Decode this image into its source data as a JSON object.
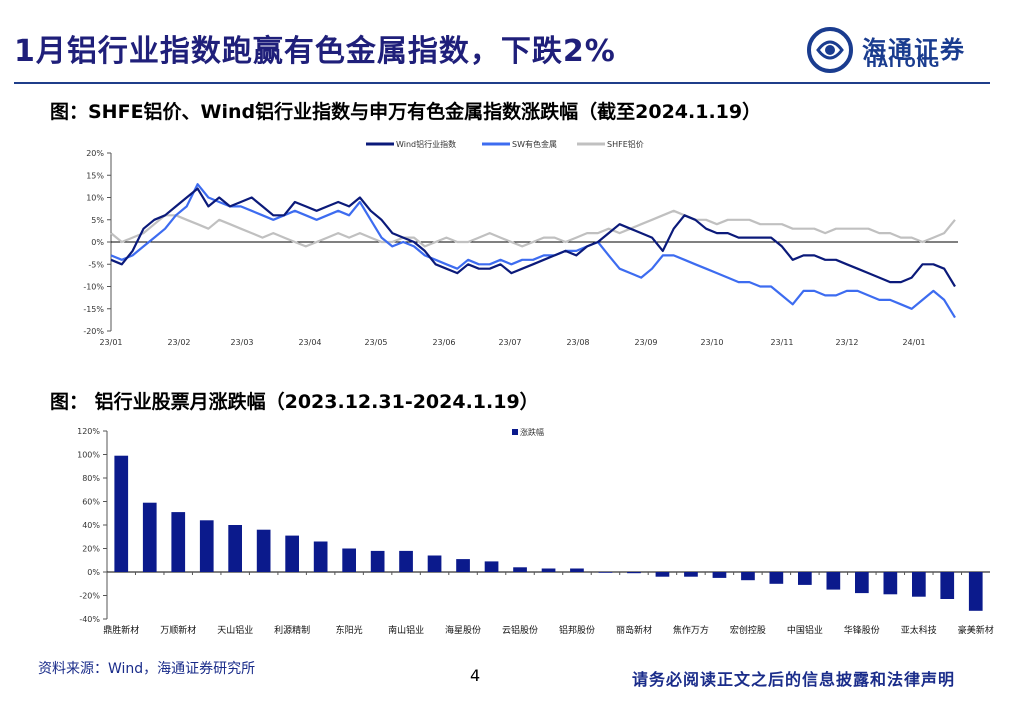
{
  "page": {
    "title": "1月铝行业指数跑赢有色金属指数，下跌2%",
    "subtitle1": "图：SHFE铝价、Wind铝行业指数与申万有色金属指数涨跌幅（截至2024.1.19）",
    "subtitle2": "图：  铝行业股票月涨跌幅（2023.12.31-2024.1.19）",
    "source": "资料来源：Wind，海通证券研究所",
    "page_number": "4",
    "disclaimer": "请务必阅读正文之后的信息披露和法律声明",
    "logo_cn": "海通证券",
    "logo_en": "HAITONG"
  },
  "colors": {
    "title": "#1f1f7a",
    "wind_series": "#0b1a7a",
    "sw_series": "#3d6cf0",
    "shfe_series": "#c0c0c0",
    "bar": "#0b1a8c",
    "brand": "#1a3c8f"
  },
  "chart_data": [
    {
      "type": "line",
      "x_ticks": [
        "23/01",
        "23/02",
        "23/03",
        "23/04",
        "23/05",
        "23/06",
        "23/07",
        "23/08",
        "23/09",
        "23/10",
        "23/11",
        "23/12",
        "24/01"
      ],
      "y_ticks": [
        "20%",
        "15%",
        "10%",
        "5%",
        "0%",
        "-5%",
        "-10%",
        "-15%",
        "-20%"
      ],
      "ylim": [
        -20,
        20
      ],
      "legend_position": "top",
      "series": [
        {
          "name": "Wind铝行业指数",
          "color": "#0b1a7a",
          "values": [
            -4,
            -5,
            -2,
            3,
            5,
            6,
            8,
            10,
            12,
            8,
            10,
            8,
            9,
            10,
            8,
            6,
            6,
            9,
            8,
            7,
            8,
            9,
            8,
            10,
            7,
            5,
            2,
            1,
            0,
            -2,
            -5,
            -6,
            -7,
            -5,
            -6,
            -6,
            -5,
            -7,
            -6,
            -5,
            -4,
            -3,
            -2,
            -3,
            -1,
            0,
            2,
            4,
            3,
            2,
            1,
            -2,
            3,
            6,
            5,
            3,
            2,
            2,
            1,
            1,
            1,
            1,
            -1,
            -4,
            -3,
            -3,
            -4,
            -4,
            -5,
            -6,
            -7,
            -8,
            -9,
            -9,
            -8,
            -5,
            -5,
            -6,
            -10
          ]
        },
        {
          "name": "SW有色金属",
          "color": "#3d6cf0",
          "values": [
            -3,
            -4,
            -3,
            -1,
            1,
            3,
            6,
            8,
            13,
            10,
            9,
            8,
            8,
            7,
            6,
            5,
            6,
            7,
            6,
            5,
            6,
            7,
            6,
            9,
            5,
            1,
            -1,
            0,
            -1,
            -3,
            -4,
            -5,
            -6,
            -4,
            -5,
            -5,
            -4,
            -5,
            -4,
            -4,
            -3,
            -3,
            -2,
            -2,
            -1,
            0,
            -3,
            -6,
            -7,
            -8,
            -6,
            -3,
            -3,
            -4,
            -5,
            -6,
            -7,
            -8,
            -9,
            -9,
            -10,
            -10,
            -12,
            -14,
            -11,
            -11,
            -12,
            -12,
            -11,
            -11,
            -12,
            -13,
            -13,
            -14,
            -15,
            -13,
            -11,
            -13,
            -17
          ]
        },
        {
          "name": "SHFE铝价",
          "color": "#c0c0c0",
          "values": [
            2,
            0,
            1,
            2,
            4,
            6,
            6,
            5,
            4,
            3,
            5,
            4,
            3,
            2,
            1,
            2,
            1,
            0,
            -1,
            0,
            1,
            2,
            1,
            2,
            1,
            0,
            0,
            1,
            1,
            -1,
            0,
            1,
            0,
            0,
            1,
            2,
            1,
            0,
            -1,
            0,
            1,
            1,
            0,
            1,
            2,
            2,
            3,
            2,
            3,
            4,
            5,
            6,
            7,
            6,
            5,
            5,
            4,
            5,
            5,
            5,
            4,
            4,
            4,
            3,
            3,
            3,
            2,
            3,
            3,
            3,
            3,
            2,
            2,
            1,
            1,
            0,
            1,
            2,
            5
          ]
        }
      ]
    },
    {
      "type": "bar",
      "legend": "涨跌幅",
      "y_ticks": [
        "120%",
        "100%",
        "80%",
        "60%",
        "40%",
        "20%",
        "0%",
        "-20%",
        "-40%"
      ],
      "ylim": [
        -40,
        120
      ],
      "categories": [
        "鼎胜新材",
        "",
        "万顺新材",
        "",
        "天山铝业",
        "",
        "利源精制",
        "",
        "东阳光",
        "",
        "南山铝业",
        "",
        "海星股份",
        "",
        "云铝股份",
        "",
        "铝邦股份",
        "",
        "丽岛新材",
        "",
        "焦作万方",
        "",
        "宏创控股",
        "",
        "中国铝业",
        "",
        "华锋股份",
        "",
        "亚太科技",
        "",
        "豪美新材"
      ],
      "values": [
        99,
        59,
        51,
        44,
        40,
        36,
        31,
        26,
        20,
        18,
        18,
        14,
        11,
        9,
        4,
        3,
        3,
        0,
        -1,
        -4,
        -4,
        -5,
        -7,
        -10,
        -11,
        -15,
        -18,
        -19,
        -21,
        -23,
        -33
      ]
    }
  ]
}
